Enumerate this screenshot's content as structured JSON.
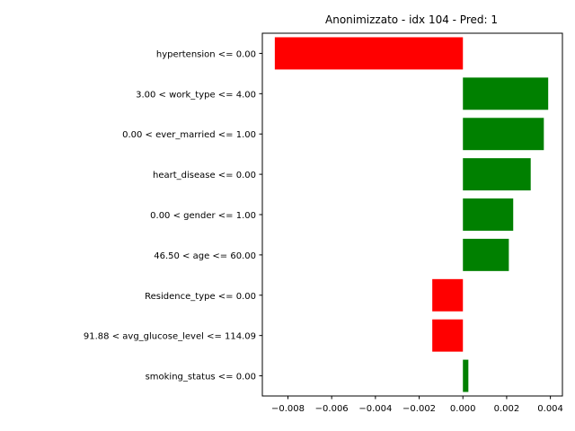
{
  "chart_data": {
    "type": "bar",
    "orientation": "horizontal",
    "title": "Anonimizzato - idx 104 - Pred: 1",
    "xlabel": "",
    "ylabel": "",
    "grid": false,
    "xlim": [
      -0.00917,
      0.00455
    ],
    "x_ticks": [
      -0.008,
      -0.006,
      -0.004,
      -0.002,
      0.0,
      0.002,
      0.004
    ],
    "x_tick_labels": [
      "−0.008",
      "−0.006",
      "−0.004",
      "−0.002",
      "0.000",
      "0.002",
      "0.004"
    ],
    "categories": [
      "hypertension <= 0.00",
      "3.00 < work_type <= 4.00",
      "0.00 < ever_married <= 1.00",
      "heart_disease <= 0.00",
      "0.00 < gender <= 1.00",
      "46.50 < age <= 60.00",
      "Residence_type <= 0.00",
      "91.88 < avg_glucose_level <= 114.09",
      "smoking_status <= 0.00"
    ],
    "values": [
      -0.0086,
      0.0039,
      0.0037,
      0.0031,
      0.0023,
      0.0021,
      -0.0014,
      -0.0014,
      0.00025
    ],
    "positive_color": "#008000",
    "negative_color": "#ff0000"
  }
}
